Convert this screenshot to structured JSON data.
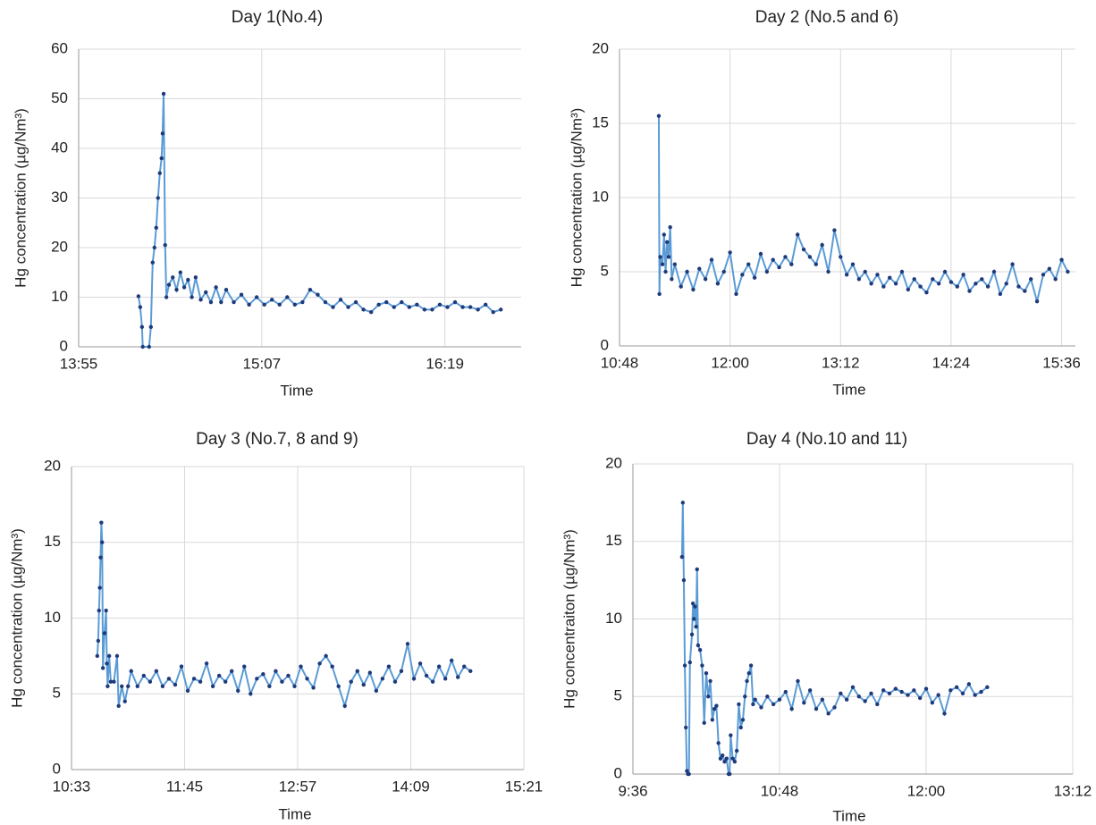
{
  "chart_data": [
    {
      "type": "line",
      "title": "Day 1(No.4)",
      "x_label": "Time",
      "y_label": "Hg concentration (µg/Nm³)",
      "color": "#5b9bd5",
      "marker_color": "#1f3a7a",
      "grid": true,
      "xlim": [
        835,
        1009
      ],
      "xticks": [
        {
          "value": 835,
          "label": "13:55"
        },
        {
          "value": 907,
          "label": "15:07"
        },
        {
          "value": 979,
          "label": "16:19"
        }
      ],
      "ylim": [
        0,
        60
      ],
      "yticks": [
        0,
        10,
        20,
        30,
        40,
        50,
        60
      ],
      "x": [
        858.5,
        859.2,
        859.9,
        860.2,
        862.7,
        863.4,
        864.1,
        864.8,
        865.5,
        866.2,
        866.9,
        867.6,
        868.0,
        868.4,
        869.0,
        869.5,
        870.5,
        872,
        873.5,
        875,
        876.5,
        878,
        879.5,
        881,
        883,
        885,
        887,
        889,
        891,
        893,
        896,
        899,
        902,
        905,
        908,
        911,
        914,
        917,
        920,
        923,
        926,
        929,
        932,
        935,
        938,
        941,
        944,
        947,
        950,
        953,
        956,
        959,
        962,
        965,
        968,
        971,
        974,
        977,
        980,
        983,
        986,
        989,
        992,
        995,
        998,
        1001
      ],
      "values": [
        10.2,
        8,
        4,
        0,
        0,
        4,
        17,
        20,
        24,
        30,
        35,
        38,
        43,
        51,
        20.5,
        10,
        12.5,
        14,
        11.5,
        15,
        12,
        13.5,
        10,
        14,
        9.5,
        11,
        9,
        12,
        9,
        11.5,
        9,
        10.5,
        8.5,
        10,
        8.5,
        9.5,
        8.5,
        10,
        8.5,
        9,
        11.5,
        10.5,
        9,
        8,
        9.5,
        8,
        9,
        7.5,
        7,
        8.5,
        9,
        8,
        9,
        8,
        8.5,
        7.5,
        7.5,
        8.5,
        8,
        9,
        8,
        8,
        7.5,
        8.5,
        7,
        7.5
      ]
    },
    {
      "type": "line",
      "title": "Day 2 (No.5 and 6)",
      "x_label": "Time",
      "y_label": "Hg concentration (µg/Nm³)",
      "color": "#5b9bd5",
      "marker_color": "#1f3a7a",
      "grid": true,
      "xlim": [
        648,
        945
      ],
      "xticks": [
        {
          "value": 648,
          "label": "10:48"
        },
        {
          "value": 720,
          "label": "12:00"
        },
        {
          "value": 792,
          "label": "13:12"
        },
        {
          "value": 864,
          "label": "14:24"
        },
        {
          "value": 936,
          "label": "15:36"
        }
      ],
      "ylim": [
        0,
        20
      ],
      "yticks": [
        0,
        5,
        10,
        15,
        20
      ],
      "x": [
        673.6,
        674,
        674.5,
        676,
        677,
        678,
        679,
        680,
        681,
        682,
        684,
        688,
        692,
        696,
        700,
        704,
        708,
        712,
        716,
        720,
        724,
        728,
        732,
        736,
        740,
        744,
        748,
        752,
        756,
        760,
        764,
        768,
        772,
        776,
        780,
        784,
        788,
        792,
        796,
        800,
        804,
        808,
        812,
        816,
        820,
        824,
        828,
        832,
        836,
        840,
        844,
        848,
        852,
        856,
        860,
        864,
        868,
        872,
        876,
        880,
        884,
        888,
        892,
        896,
        900,
        904,
        908,
        912,
        916,
        920,
        924,
        928,
        932,
        936,
        940
      ],
      "values": [
        15.5,
        3.5,
        6,
        5.5,
        7.5,
        5,
        7,
        6,
        8,
        4.5,
        5.5,
        4,
        5,
        3.8,
        5.2,
        4.5,
        5.8,
        4.2,
        5,
        6.3,
        3.5,
        4.8,
        5.5,
        4.6,
        6.2,
        5,
        5.8,
        5.3,
        6,
        5.5,
        7.5,
        6.5,
        6,
        5.5,
        6.8,
        5,
        7.8,
        6,
        4.8,
        5.5,
        4.5,
        5,
        4.2,
        4.8,
        4,
        4.6,
        4.2,
        5,
        3.8,
        4.5,
        4,
        3.6,
        4.5,
        4.2,
        5,
        4.3,
        4,
        4.8,
        3.7,
        4.2,
        4.5,
        4,
        5,
        3.5,
        4.2,
        5.5,
        4,
        3.7,
        4.5,
        3,
        4.8,
        5.2,
        4.5,
        5.8,
        5
      ]
    },
    {
      "type": "line",
      "title": "Day 3 (No.7, 8 and 9)",
      "x_label": "Time",
      "y_label": "Hg concentration (µg/Nm³)",
      "color": "#5b9bd5",
      "marker_color": "#1f3a7a",
      "grid": true,
      "xlim": [
        633,
        921
      ],
      "xticks": [
        {
          "value": 633,
          "label": "10:33"
        },
        {
          "value": 705,
          "label": "11:45"
        },
        {
          "value": 777,
          "label": "12:57"
        },
        {
          "value": 849,
          "label": "14:09"
        },
        {
          "value": 921,
          "label": "15:21"
        }
      ],
      "ylim": [
        0,
        20
      ],
      "yticks": [
        0,
        5,
        10,
        15,
        20
      ],
      "x": [
        649.4,
        650,
        650.5,
        651,
        651.5,
        652,
        652.5,
        653,
        654,
        655,
        655.5,
        656,
        657,
        658,
        660,
        662,
        663,
        665,
        667,
        669,
        671,
        675,
        679,
        683,
        687,
        691,
        695,
        699,
        703,
        707,
        711,
        715,
        719,
        723,
        727,
        731,
        735,
        739,
        743,
        747,
        751,
        755,
        759,
        763,
        767,
        771,
        775,
        779,
        783,
        787,
        791,
        795,
        799,
        803,
        807,
        811,
        815,
        819,
        823,
        827,
        831,
        835,
        839,
        843,
        847,
        851,
        855,
        859,
        863,
        867,
        871,
        875,
        879,
        883,
        887
      ],
      "values": [
        7.5,
        8.5,
        10.5,
        12,
        14,
        16.3,
        15,
        6.7,
        9,
        10.5,
        7,
        5.5,
        7.5,
        5.8,
        5.8,
        7.5,
        4.2,
        5.5,
        4.5,
        5.5,
        6.5,
        5.5,
        6.2,
        5.8,
        6.5,
        5.5,
        6,
        5.6,
        6.8,
        5.2,
        6,
        5.8,
        7,
        5.5,
        6.2,
        5.8,
        6.5,
        5.2,
        6.8,
        5,
        6,
        6.3,
        5.5,
        6.5,
        5.8,
        6.2,
        5.5,
        6.8,
        6,
        5.4,
        7,
        7.5,
        6.8,
        5.5,
        4.2,
        5.8,
        6.5,
        5.6,
        6.4,
        5.2,
        6,
        6.8,
        5.8,
        6.5,
        8.3,
        6,
        7,
        6.2,
        5.8,
        6.8,
        6,
        7.2,
        6.1,
        6.8,
        6.5
      ]
    },
    {
      "type": "line",
      "title": "Day 4 (No.10 and 11)",
      "x_label": "Time",
      "y_label": "Hg concentraiton (µg/Nm³)",
      "color": "#5b9bd5",
      "marker_color": "#1f3a7a",
      "grid": true,
      "xlim": [
        576,
        792
      ],
      "xticks": [
        {
          "value": 576,
          "label": "9:36"
        },
        {
          "value": 648,
          "label": "10:48"
        },
        {
          "value": 720,
          "label": "12:00"
        },
        {
          "value": 792,
          "label": "13:12"
        }
      ],
      "ylim": [
        0,
        20
      ],
      "yticks": [
        0,
        5,
        10,
        15,
        20
      ],
      "x": [
        600.1,
        600.5,
        601,
        601.5,
        602,
        602.5,
        603,
        603.5,
        604,
        605,
        605.5,
        606,
        606.5,
        607,
        607.5,
        608,
        609,
        610,
        611,
        612,
        613,
        614,
        615,
        616,
        617,
        618,
        619,
        620,
        621,
        622,
        623,
        623.5,
        624,
        625,
        626,
        627,
        628,
        629,
        630,
        631,
        632,
        633,
        634,
        635,
        636,
        639,
        642,
        645,
        648,
        651,
        654,
        657,
        660,
        663,
        666,
        669,
        672,
        675,
        678,
        681,
        684,
        687,
        690,
        693,
        696,
        699,
        702,
        705,
        708,
        711,
        714,
        717,
        720,
        723,
        726,
        729,
        732,
        735,
        738,
        741,
        744,
        747,
        750
      ],
      "values": [
        14,
        17.5,
        12.5,
        7,
        3,
        0.2,
        0,
        0,
        7.2,
        9,
        11,
        10,
        10.8,
        9.5,
        13.2,
        8.3,
        8,
        7,
        3.3,
        6.5,
        5,
        6,
        3.5,
        4.2,
        4.4,
        2,
        1,
        1.2,
        0.8,
        1,
        0,
        0,
        2.5,
        1,
        0.8,
        1.5,
        4.5,
        3,
        3.5,
        5,
        6,
        6.5,
        7,
        4.5,
        4.8,
        4.3,
        5,
        4.5,
        4.8,
        5.3,
        4.2,
        6,
        4.6,
        5.4,
        4.2,
        4.8,
        3.9,
        4.3,
        5.2,
        4.8,
        5.6,
        5,
        4.7,
        5.2,
        4.5,
        5.4,
        5.2,
        5.5,
        5.3,
        5.1,
        5.4,
        4.9,
        5.5,
        4.6,
        5.1,
        3.9,
        5.4,
        5.6,
        5.2,
        5.8,
        5.1,
        5.3,
        5.6
      ]
    }
  ]
}
